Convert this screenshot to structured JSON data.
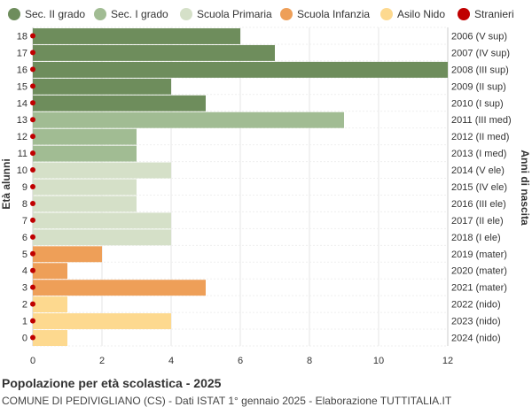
{
  "chart_data": {
    "type": "bar",
    "orientation": "horizontal",
    "title": "Popolazione per età scolastica - 2025",
    "subtitle": "COMUNE DI PEDIVIGLIANO (CS) - Dati ISTAT 1° gennaio 2025 - Elaborazione TUTTITALIA.IT",
    "ylabel": "Età alunni",
    "ylabel_right": "Anni di nascita",
    "xlim": [
      0,
      12
    ],
    "x_ticks": [
      0,
      2,
      4,
      6,
      8,
      10,
      12
    ],
    "grid": true,
    "legend_position": "top",
    "legend": [
      {
        "name": "Sec. II grado",
        "color": "#6e8d5c",
        "marker": "circle"
      },
      {
        "name": "Sec. I grado",
        "color": "#a1bc93",
        "marker": "circle"
      },
      {
        "name": "Scuola Primaria",
        "color": "#d5e0c8",
        "marker": "circle"
      },
      {
        "name": "Scuola Infanzia",
        "color": "#ee9f58",
        "marker": "circle"
      },
      {
        "name": "Asilo Nido",
        "color": "#fdd98f",
        "marker": "circle"
      },
      {
        "name": "Stranieri",
        "color": "#c00000",
        "marker": "circle"
      }
    ],
    "rows": [
      {
        "age": "18",
        "birth": "2006 (V sup)",
        "value": 6,
        "group": 0,
        "stranieri": 0
      },
      {
        "age": "17",
        "birth": "2007 (IV sup)",
        "value": 7,
        "group": 0,
        "stranieri": 0
      },
      {
        "age": "16",
        "birth": "2008 (III sup)",
        "value": 12,
        "group": 0,
        "stranieri": 0
      },
      {
        "age": "15",
        "birth": "2009 (II sup)",
        "value": 4,
        "group": 0,
        "stranieri": 0
      },
      {
        "age": "14",
        "birth": "2010 (I sup)",
        "value": 5,
        "group": 0,
        "stranieri": 0
      },
      {
        "age": "13",
        "birth": "2011 (III med)",
        "value": 9,
        "group": 1,
        "stranieri": 0
      },
      {
        "age": "12",
        "birth": "2012 (II med)",
        "value": 3,
        "group": 1,
        "stranieri": 0
      },
      {
        "age": "11",
        "birth": "2013 (I med)",
        "value": 3,
        "group": 1,
        "stranieri": 0
      },
      {
        "age": "10",
        "birth": "2014 (V ele)",
        "value": 4,
        "group": 2,
        "stranieri": 0
      },
      {
        "age": "9",
        "birth": "2015 (IV ele)",
        "value": 3,
        "group": 2,
        "stranieri": 0
      },
      {
        "age": "8",
        "birth": "2016 (III ele)",
        "value": 3,
        "group": 2,
        "stranieri": 0
      },
      {
        "age": "7",
        "birth": "2017 (II ele)",
        "value": 4,
        "group": 2,
        "stranieri": 0
      },
      {
        "age": "6",
        "birth": "2018 (I ele)",
        "value": 4,
        "group": 2,
        "stranieri": 0
      },
      {
        "age": "5",
        "birth": "2019 (mater)",
        "value": 2,
        "group": 3,
        "stranieri": 0
      },
      {
        "age": "4",
        "birth": "2020 (mater)",
        "value": 1,
        "group": 3,
        "stranieri": 0
      },
      {
        "age": "3",
        "birth": "2021 (mater)",
        "value": 5,
        "group": 3,
        "stranieri": 0
      },
      {
        "age": "2",
        "birth": "2022 (nido)",
        "value": 1,
        "group": 4,
        "stranieri": 0
      },
      {
        "age": "1",
        "birth": "2023 (nido)",
        "value": 4,
        "group": 4,
        "stranieri": 0
      },
      {
        "age": "0",
        "birth": "2024 (nido)",
        "value": 1,
        "group": 4,
        "stranieri": 0
      }
    ]
  }
}
